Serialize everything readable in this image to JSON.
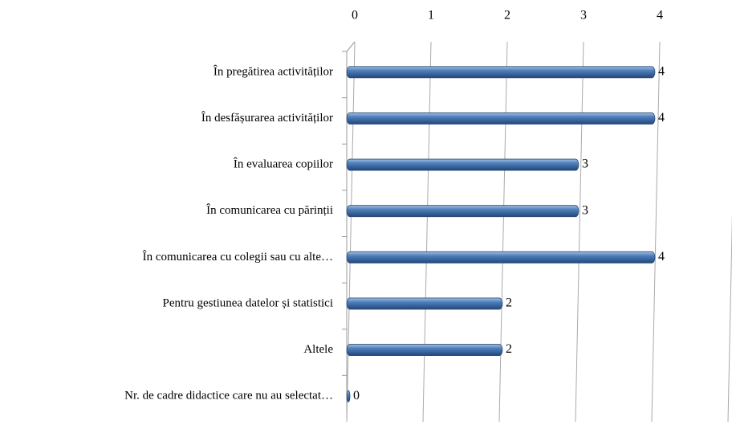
{
  "chart_data": {
    "type": "bar",
    "orientation": "horizontal",
    "categories": [
      "În pregătirea activităților",
      "În desfășurarea activităților",
      "În evaluarea copiilor",
      "În comunicarea cu părinții",
      "În comunicarea cu colegii sau cu alte…",
      "Pentru gestiunea datelor și statistici",
      "Altele",
      "Nr.  de cadre didactice care nu au selectat…"
    ],
    "values": [
      4,
      4,
      3,
      3,
      4,
      2,
      2,
      0
    ],
    "color": "#4f81bd",
    "xlim": [
      0,
      5
    ],
    "xticks": [
      0,
      1,
      2,
      3,
      4,
      5
    ],
    "grid": true
  }
}
